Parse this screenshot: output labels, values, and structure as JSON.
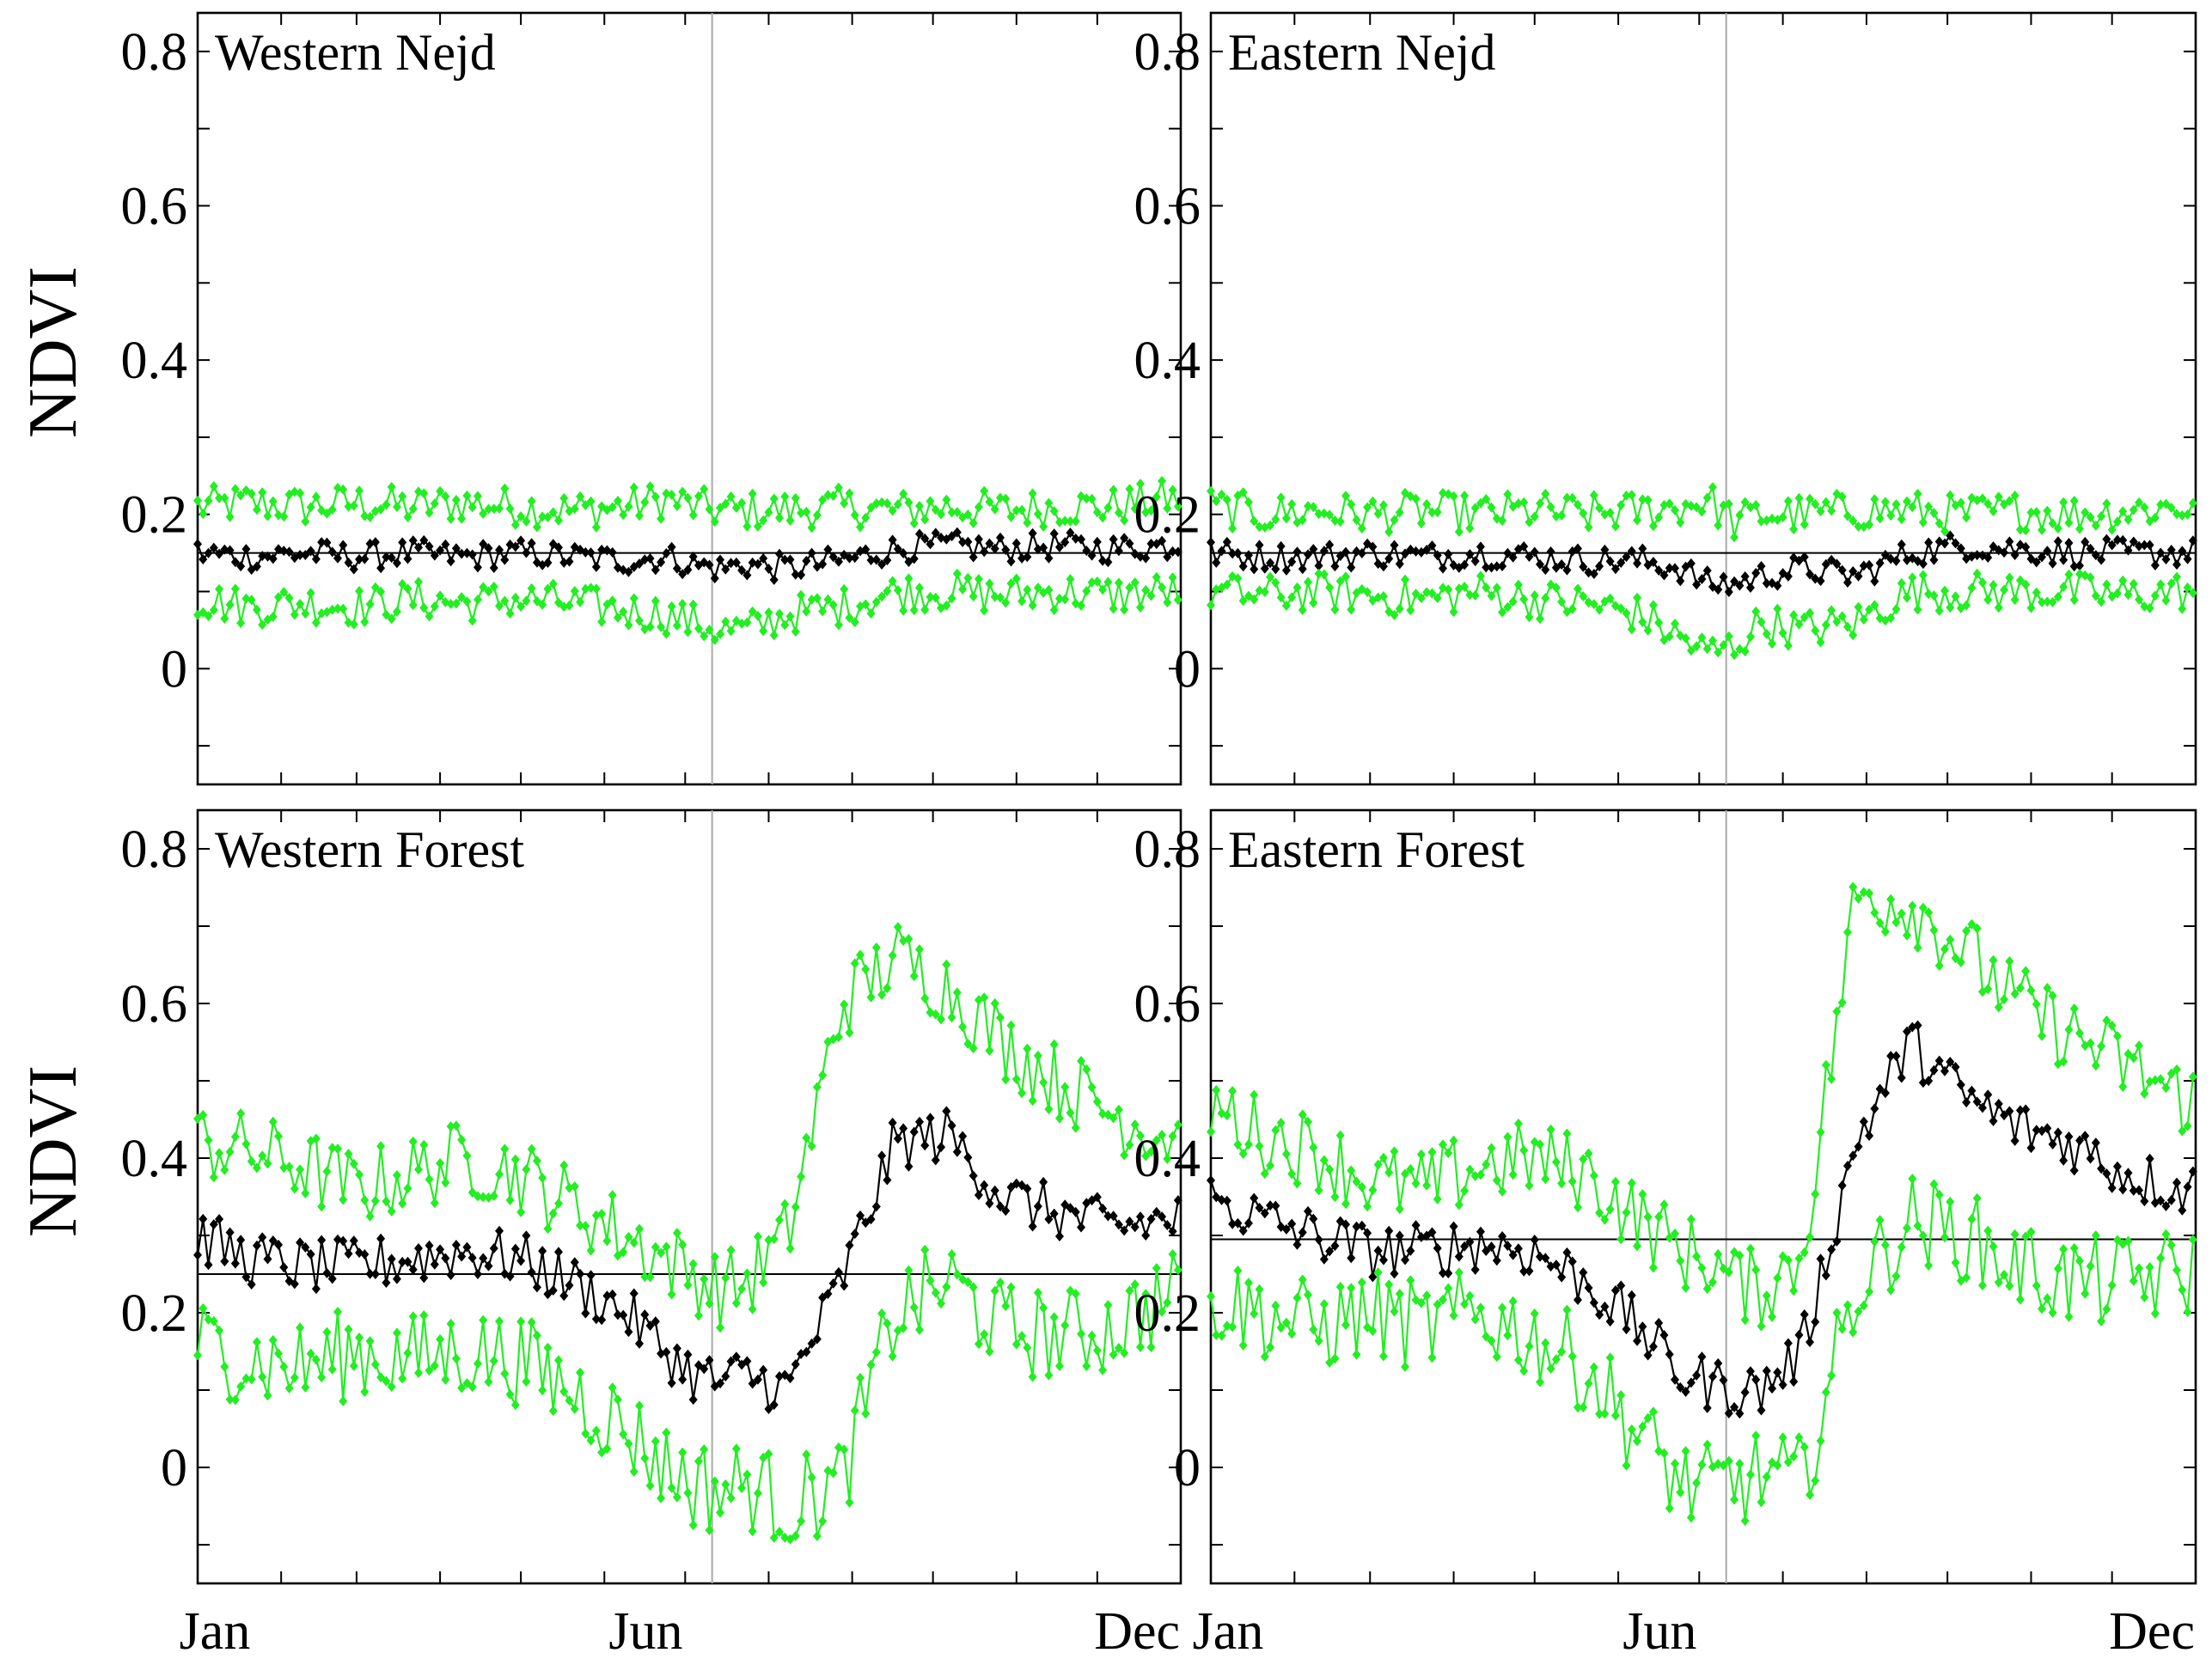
{
  "chart_data": [
    {
      "type": "line",
      "title": "Western Nejd",
      "ylabel": "NDVI",
      "ylim": [
        -0.15,
        0.85
      ],
      "yticks": [
        "0.8",
        "0.6",
        "0.4",
        "0.2",
        "0"
      ],
      "xticks": [
        "Jan",
        "Jun",
        "Dec"
      ],
      "reference_line": 0.15,
      "marker_month": "Jun",
      "series": [
        {
          "name": "upper",
          "color": "#22ee22",
          "x": [
            1,
            20,
            40,
            60,
            80,
            100,
            120,
            140,
            160,
            175,
            185,
            195,
            205,
            220,
            240,
            260,
            280,
            300,
            320,
            340,
            360
          ],
          "values": [
            0.21,
            0.215,
            0.21,
            0.215,
            0.21,
            0.215,
            0.21,
            0.205,
            0.21,
            0.22,
            0.21,
            0.205,
            0.205,
            0.205,
            0.21,
            0.205,
            0.21,
            0.205,
            0.21,
            0.21,
            0.22
          ]
        },
        {
          "name": "mean",
          "color": "#000000",
          "x": [
            1,
            20,
            40,
            60,
            80,
            100,
            120,
            140,
            160,
            175,
            185,
            195,
            205,
            220,
            240,
            260,
            280,
            300,
            320,
            340,
            360
          ],
          "values": [
            0.15,
            0.145,
            0.15,
            0.145,
            0.15,
            0.145,
            0.15,
            0.145,
            0.14,
            0.145,
            0.135,
            0.13,
            0.135,
            0.13,
            0.14,
            0.155,
            0.16,
            0.155,
            0.16,
            0.155,
            0.16
          ]
        },
        {
          "name": "lower",
          "color": "#22ee22",
          "x": [
            1,
            20,
            40,
            60,
            80,
            100,
            120,
            140,
            160,
            175,
            185,
            195,
            205,
            220,
            240,
            260,
            280,
            300,
            320,
            340,
            360
          ],
          "values": [
            0.09,
            0.08,
            0.085,
            0.08,
            0.09,
            0.085,
            0.09,
            0.085,
            0.075,
            0.07,
            0.06,
            0.05,
            0.05,
            0.07,
            0.08,
            0.1,
            0.1,
            0.095,
            0.1,
            0.095,
            0.1
          ]
        }
      ]
    },
    {
      "type": "line",
      "title": "Eastern Nejd",
      "ylabel": "",
      "ylim": [
        -0.15,
        0.85
      ],
      "yticks": [
        "0.8",
        "0.6",
        "0.4",
        "0.2",
        "0"
      ],
      "xticks": [
        "Jan",
        "Jun",
        "Dec"
      ],
      "reference_line": 0.15,
      "marker_month": "Jun",
      "series": [
        {
          "name": "upper",
          "color": "#22ee22",
          "x": [
            1,
            20,
            40,
            60,
            80,
            100,
            120,
            140,
            160,
            175,
            185,
            195,
            205,
            220,
            240,
            260,
            280,
            300,
            320,
            340,
            360
          ],
          "values": [
            0.21,
            0.2,
            0.205,
            0.2,
            0.205,
            0.2,
            0.205,
            0.2,
            0.205,
            0.21,
            0.22,
            0.19,
            0.2,
            0.2,
            0.205,
            0.205,
            0.2,
            0.205,
            0.2,
            0.205,
            0.21
          ]
        },
        {
          "name": "mean",
          "color": "#000000",
          "x": [
            1,
            20,
            40,
            60,
            80,
            100,
            120,
            140,
            160,
            175,
            185,
            195,
            205,
            220,
            240,
            260,
            280,
            300,
            320,
            340,
            360
          ],
          "values": [
            0.15,
            0.145,
            0.145,
            0.15,
            0.145,
            0.15,
            0.145,
            0.14,
            0.14,
            0.13,
            0.11,
            0.11,
            0.12,
            0.13,
            0.12,
            0.15,
            0.16,
            0.155,
            0.15,
            0.15,
            0.15
          ]
        },
        {
          "name": "lower",
          "color": "#22ee22",
          "x": [
            1,
            20,
            40,
            60,
            80,
            100,
            120,
            140,
            160,
            175,
            185,
            195,
            205,
            220,
            240,
            260,
            280,
            300,
            320,
            340,
            360
          ],
          "values": [
            0.1,
            0.095,
            0.1,
            0.095,
            0.09,
            0.1,
            0.09,
            0.085,
            0.07,
            0.04,
            0.02,
            0.03,
            0.06,
            0.05,
            0.06,
            0.1,
            0.1,
            0.1,
            0.1,
            0.095,
            0.1
          ]
        }
      ]
    },
    {
      "type": "line",
      "title": "Western Forest",
      "ylabel": "NDVI",
      "ylim": [
        -0.15,
        0.85
      ],
      "yticks": [
        "0.8",
        "0.6",
        "0.4",
        "0.2",
        "0"
      ],
      "xticks": [
        "Jan",
        "Jun",
        "Dec"
      ],
      "reference_line": 0.25,
      "marker_month": "Jun",
      "series": [
        {
          "name": "upper",
          "color": "#22ee22",
          "x": [
            1,
            20,
            40,
            60,
            80,
            100,
            120,
            140,
            160,
            175,
            185,
            195,
            205,
            220,
            240,
            260,
            280,
            300,
            320,
            340,
            360
          ],
          "values": [
            0.42,
            0.41,
            0.39,
            0.36,
            0.38,
            0.4,
            0.38,
            0.34,
            0.3,
            0.27,
            0.25,
            0.23,
            0.24,
            0.3,
            0.6,
            0.66,
            0.62,
            0.55,
            0.5,
            0.46,
            0.43
          ]
        },
        {
          "name": "mean",
          "color": "#000000",
          "x": [
            1,
            20,
            40,
            60,
            80,
            100,
            120,
            140,
            160,
            175,
            185,
            195,
            205,
            220,
            240,
            260,
            280,
            300,
            320,
            340,
            360
          ],
          "values": [
            0.3,
            0.27,
            0.26,
            0.26,
            0.27,
            0.28,
            0.27,
            0.24,
            0.2,
            0.15,
            0.12,
            0.11,
            0.12,
            0.1,
            0.24,
            0.42,
            0.43,
            0.35,
            0.33,
            0.31,
            0.32
          ]
        },
        {
          "name": "lower",
          "color": "#22ee22",
          "x": [
            1,
            20,
            40,
            60,
            80,
            100,
            120,
            140,
            160,
            175,
            185,
            195,
            205,
            220,
            240,
            260,
            280,
            300,
            320,
            340,
            360
          ],
          "values": [
            0.16,
            0.14,
            0.13,
            0.15,
            0.14,
            0.15,
            0.14,
            0.1,
            0.05,
            0.0,
            -0.02,
            -0.03,
            -0.02,
            -0.05,
            -0.02,
            0.2,
            0.24,
            0.18,
            0.17,
            0.18,
            0.22
          ]
        }
      ]
    },
    {
      "type": "line",
      "title": "Eastern Forest",
      "ylabel": "",
      "ylim": [
        -0.15,
        0.85
      ],
      "yticks": [
        "0.8",
        "0.6",
        "0.4",
        "0.2",
        "0"
      ],
      "xticks": [
        "Jan",
        "Jun",
        "Dec"
      ],
      "reference_line": 0.295,
      "marker_month": "Jun",
      "series": [
        {
          "name": "upper",
          "color": "#22ee22",
          "x": [
            1,
            20,
            40,
            60,
            80,
            100,
            120,
            140,
            160,
            175,
            185,
            195,
            205,
            220,
            240,
            260,
            280,
            300,
            320,
            340,
            360
          ],
          "values": [
            0.47,
            0.43,
            0.41,
            0.37,
            0.36,
            0.39,
            0.4,
            0.38,
            0.32,
            0.28,
            0.27,
            0.24,
            0.23,
            0.27,
            0.74,
            0.73,
            0.67,
            0.6,
            0.56,
            0.52,
            0.48
          ]
        },
        {
          "name": "mean",
          "color": "#000000",
          "x": [
            1,
            20,
            40,
            60,
            80,
            100,
            120,
            140,
            160,
            175,
            185,
            195,
            205,
            220,
            240,
            260,
            280,
            300,
            320,
            340,
            360
          ],
          "values": [
            0.35,
            0.32,
            0.3,
            0.28,
            0.28,
            0.29,
            0.28,
            0.24,
            0.18,
            0.12,
            0.11,
            0.1,
            0.1,
            0.15,
            0.42,
            0.55,
            0.48,
            0.44,
            0.42,
            0.38,
            0.36
          ]
        },
        {
          "name": "lower",
          "color": "#22ee22",
          "x": [
            1,
            20,
            40,
            60,
            80,
            100,
            120,
            140,
            160,
            175,
            185,
            195,
            205,
            220,
            240,
            260,
            280,
            300,
            320,
            340,
            360
          ],
          "values": [
            0.22,
            0.2,
            0.18,
            0.2,
            0.18,
            0.2,
            0.17,
            0.13,
            0.04,
            -0.02,
            -0.03,
            -0.02,
            -0.01,
            -0.02,
            0.23,
            0.32,
            0.3,
            0.26,
            0.24,
            0.24,
            0.25
          ]
        }
      ]
    }
  ]
}
